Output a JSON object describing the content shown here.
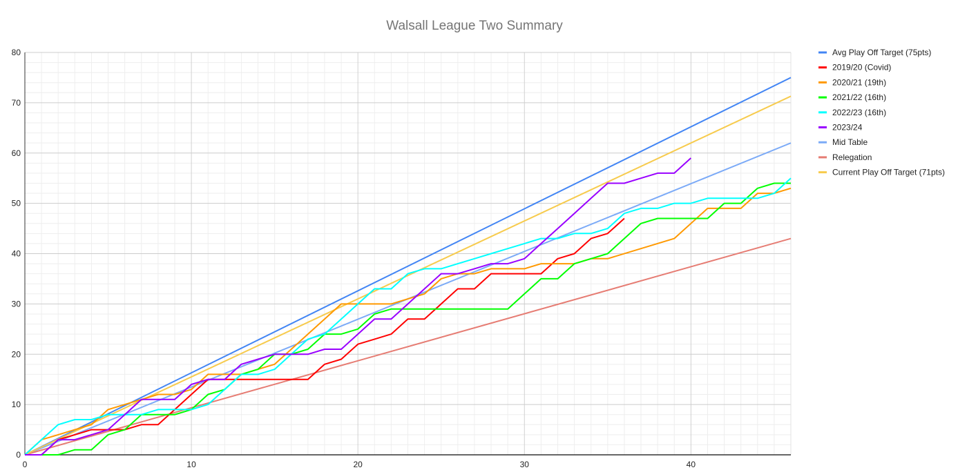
{
  "chart_data": {
    "type": "line",
    "title": "Walsall League Two Summary",
    "xlabel": "",
    "ylabel": "",
    "xlim": [
      0,
      46
    ],
    "ylim": [
      0,
      80
    ],
    "x_ticks": [
      0,
      10,
      20,
      30,
      40
    ],
    "y_ticks": [
      0,
      10,
      20,
      30,
      40,
      50,
      60,
      70,
      80
    ],
    "grid": true,
    "legend_position": "right",
    "series": [
      {
        "name": "Avg Play Off Target (75pts)",
        "color": "#4285f4",
        "x": [
          0,
          46
        ],
        "y": [
          0,
          75
        ]
      },
      {
        "name": "2019/20 (Covid)",
        "color": "#ff0000",
        "x": [
          0,
          1,
          2,
          3,
          4,
          5,
          6,
          7,
          8,
          9,
          10,
          11,
          12,
          13,
          14,
          15,
          16,
          17,
          18,
          19,
          20,
          21,
          22,
          23,
          24,
          25,
          26,
          27,
          28,
          29,
          30,
          31,
          32,
          33,
          34,
          35,
          36
        ],
        "y": [
          0,
          0,
          3,
          4,
          5,
          5,
          5,
          6,
          6,
          9,
          12,
          15,
          15,
          15,
          15,
          15,
          15,
          15,
          18,
          19,
          22,
          23,
          24,
          27,
          27,
          30,
          33,
          33,
          36,
          36,
          36,
          36,
          39,
          40,
          43,
          44,
          47
        ]
      },
      {
        "name": "2020/21 (19th)",
        "color": "#ff9900",
        "x": [
          0,
          1,
          2,
          3,
          4,
          5,
          6,
          7,
          8,
          9,
          10,
          11,
          12,
          13,
          14,
          15,
          16,
          17,
          18,
          19,
          20,
          21,
          22,
          23,
          24,
          25,
          26,
          27,
          28,
          29,
          30,
          31,
          32,
          33,
          34,
          35,
          39,
          41,
          42,
          43,
          44,
          45,
          46
        ],
        "y": [
          0,
          3,
          4,
          5,
          6,
          9,
          10,
          11,
          12,
          12,
          13,
          16,
          16,
          16,
          17,
          18,
          21,
          24,
          27,
          30,
          30,
          30,
          30,
          31,
          32,
          35,
          36,
          36,
          37,
          37,
          37,
          38,
          38,
          38,
          39,
          39,
          43,
          49,
          49,
          49,
          52,
          52,
          53
        ]
      },
      {
        "name": "2021/22 (16th)",
        "color": "#00ff00",
        "x": [
          0,
          1,
          2,
          3,
          4,
          5,
          6,
          7,
          8,
          9,
          10,
          11,
          12,
          13,
          14,
          15,
          16,
          17,
          18,
          19,
          20,
          21,
          22,
          23,
          24,
          25,
          26,
          27,
          28,
          29,
          30,
          31,
          32,
          33,
          34,
          35,
          36,
          37,
          38,
          39,
          40,
          41,
          42,
          43,
          44,
          45,
          46
        ],
        "y": [
          0,
          0,
          0,
          1,
          1,
          4,
          5,
          8,
          8,
          8,
          9,
          12,
          13,
          16,
          17,
          20,
          20,
          21,
          24,
          24,
          25,
          28,
          29,
          29,
          29,
          29,
          29,
          29,
          29,
          29,
          32,
          35,
          35,
          38,
          39,
          40,
          43,
          46,
          47,
          47,
          47,
          47,
          50,
          50,
          53,
          54,
          54
        ]
      },
      {
        "name": "2022/23 (16th)",
        "color": "#00ffff",
        "x": [
          0,
          1,
          2,
          3,
          4,
          5,
          6,
          7,
          8,
          9,
          10,
          11,
          12,
          13,
          14,
          15,
          16,
          17,
          18,
          19,
          20,
          21,
          22,
          23,
          24,
          25,
          26,
          27,
          28,
          29,
          30,
          31,
          32,
          33,
          34,
          35,
          36,
          37,
          38,
          39,
          40,
          41,
          42,
          43,
          44,
          45,
          46
        ],
        "y": [
          0,
          3,
          6,
          7,
          7,
          8,
          8,
          8,
          9,
          9,
          9,
          10,
          13,
          16,
          16,
          17,
          20,
          23,
          24,
          27,
          30,
          33,
          33,
          36,
          37,
          37,
          38,
          39,
          40,
          41,
          42,
          43,
          43,
          44,
          44,
          45,
          48,
          49,
          49,
          50,
          50,
          51,
          51,
          51,
          51,
          52,
          55
        ]
      },
      {
        "name": "2023/24",
        "color": "#9900ff",
        "x": [
          0,
          1,
          2,
          3,
          4,
          5,
          6,
          7,
          8,
          9,
          10,
          11,
          12,
          13,
          14,
          15,
          16,
          17,
          18,
          19,
          20,
          21,
          22,
          23,
          24,
          25,
          26,
          27,
          28,
          29,
          30,
          31,
          32,
          33,
          34,
          35,
          36,
          37,
          38,
          39,
          40
        ],
        "y": [
          0,
          0,
          3,
          3,
          4,
          5,
          8,
          11,
          11,
          11,
          14,
          15,
          15,
          18,
          19,
          20,
          20,
          20,
          21,
          21,
          24,
          27,
          27,
          30,
          33,
          36,
          36,
          37,
          38,
          38,
          39,
          42,
          45,
          48,
          51,
          54,
          54,
          55,
          56,
          56,
          59
        ]
      },
      {
        "name": "Mid Table",
        "color": "#7baaf7",
        "x": [
          0,
          46
        ],
        "y": [
          0,
          62
        ]
      },
      {
        "name": "Relegation",
        "color": "#e67c73",
        "x": [
          0,
          46
        ],
        "y": [
          0,
          43
        ]
      },
      {
        "name": "Current Play Off Target (71pts)",
        "color": "#f7cb4d",
        "x": [
          0,
          46
        ],
        "y": [
          0,
          71.3
        ]
      }
    ]
  }
}
